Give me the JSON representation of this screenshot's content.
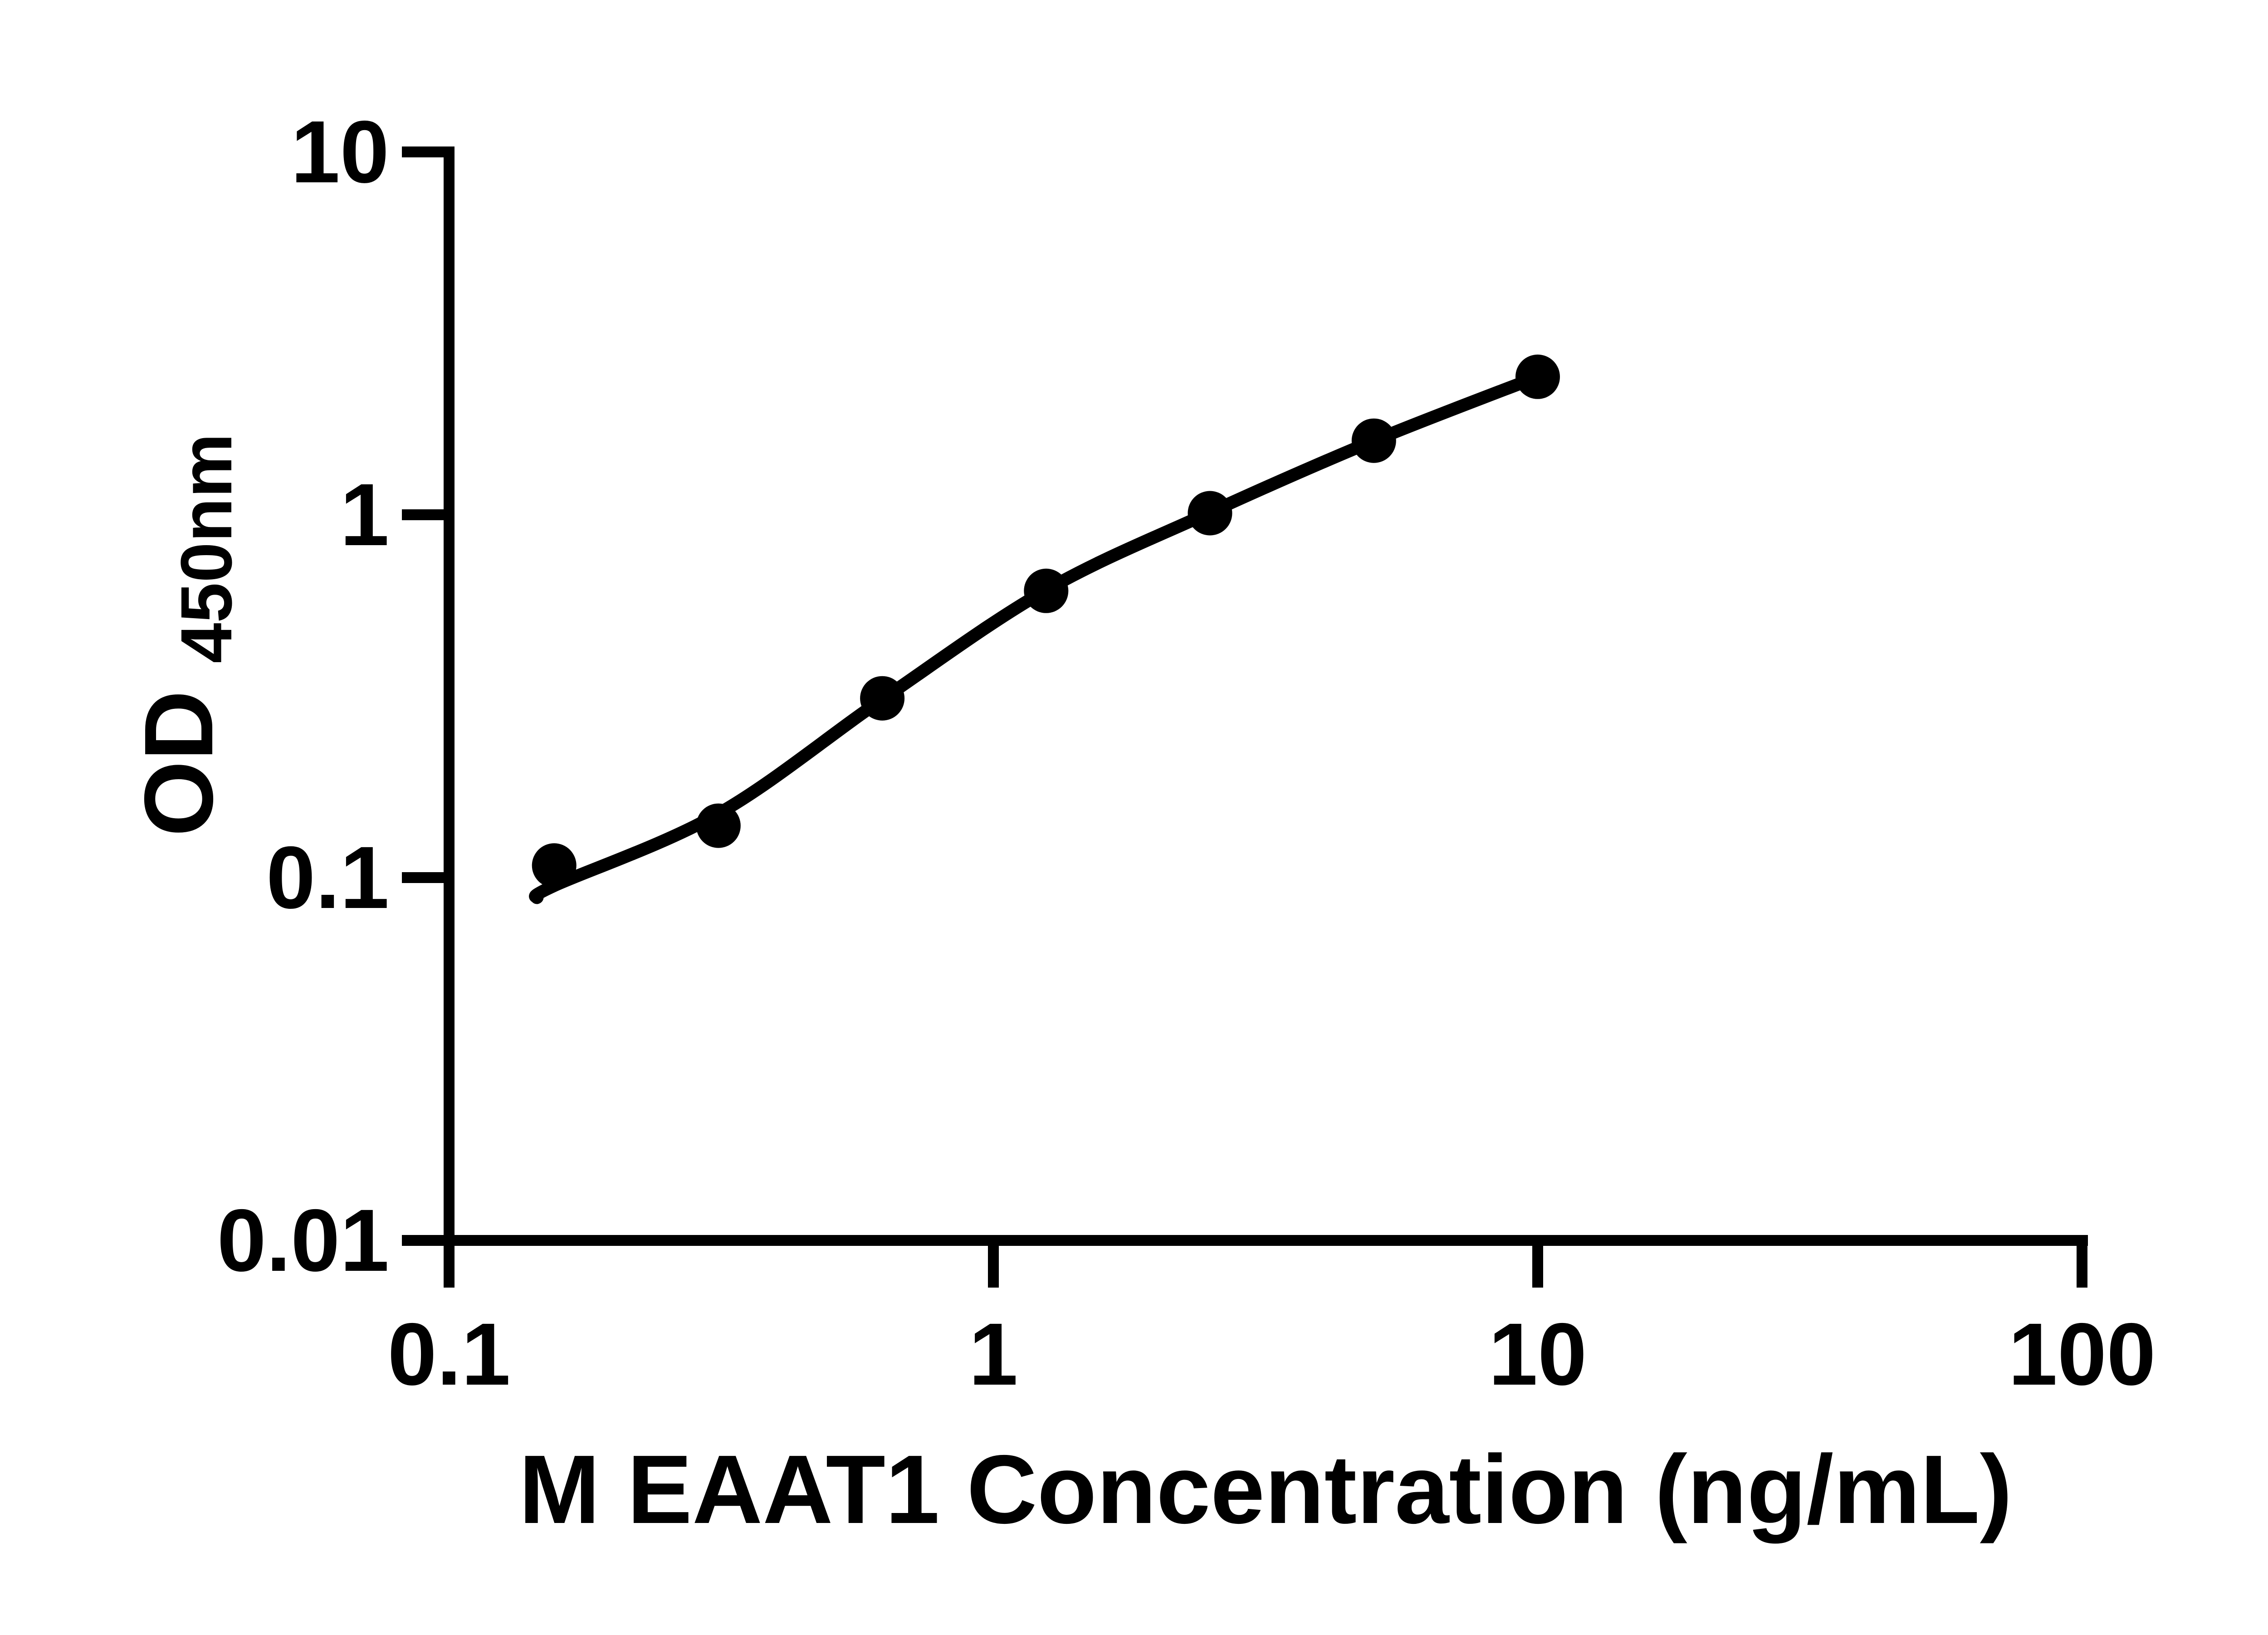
{
  "figure": {
    "background_color": "#ffffff",
    "ink_color": "#000000"
  },
  "chart_data": {
    "type": "scatter",
    "title": "",
    "xlabel": "M EAAT1 Concentration (ng/mL)",
    "ylabel_base": "OD",
    "ylabel_sub": "450nm",
    "x_scale": "log10",
    "y_scale": "log10",
    "xlim": [
      0.1,
      100
    ],
    "ylim": [
      0.01,
      10
    ],
    "x_ticks": [
      0.1,
      1,
      10,
      100
    ],
    "x_tick_labels": [
      "0.1",
      "1",
      "10",
      "100"
    ],
    "y_ticks": [
      10,
      1,
      0.1,
      0.01
    ],
    "y_tick_labels": [
      "10",
      "1",
      "0.1",
      "0.01"
    ],
    "grid": false,
    "legend": null,
    "marker_color": "#000000",
    "line_color": "#000000",
    "series": [
      {
        "name": "standard-points",
        "marker": "filled-circle",
        "x": [
          0.156,
          0.3125,
          0.625,
          1.25,
          2.5,
          5,
          10
        ],
        "y": [
          0.108,
          0.139,
          0.312,
          0.617,
          1.01,
          1.6,
          2.4
        ]
      }
    ],
    "fit_curve": {
      "name": "fit-line",
      "x": [
        0.145,
        0.156,
        0.3125,
        0.625,
        1.25,
        2.5,
        5,
        10
      ],
      "y": [
        0.088,
        0.095,
        0.15,
        0.31,
        0.62,
        1.015,
        1.6,
        2.4
      ]
    }
  }
}
